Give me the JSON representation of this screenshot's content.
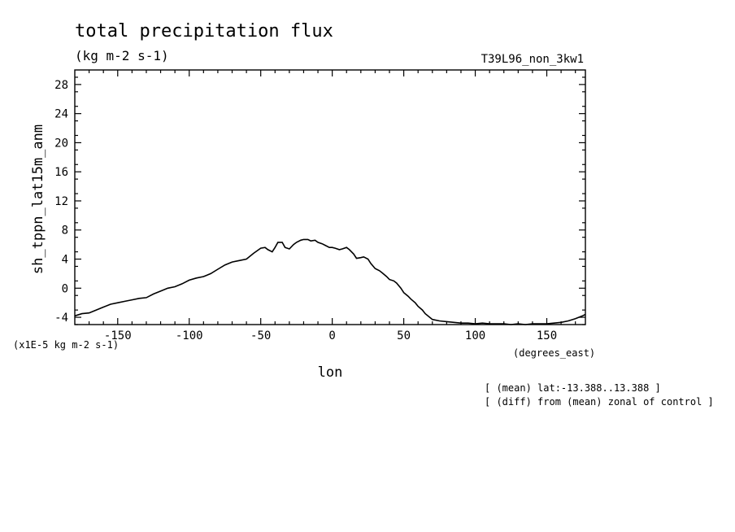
{
  "header": {
    "title": "total precipitation flux",
    "units": "(kg m-2 s-1)",
    "run_id": "T39L96_non_3kw1"
  },
  "axes": {
    "ylabel": "sh_tppn_lat15m_anm",
    "xlabel": "lon",
    "y_scale_note": "(x1E-5 kg m-2 s-1)",
    "x_unit": "(degrees_east)"
  },
  "notes": [
    "[ (mean) lat:-13.388..13.388 ]",
    "[ (diff) from (mean) zonal of control ]"
  ],
  "chart_data": {
    "type": "line",
    "title": "total precipitation flux",
    "subtitle": "(kg m-2 s-1)",
    "xlabel": "lon",
    "ylabel": "sh_tppn_lat15m_anm",
    "xlim": [
      -180,
      177
    ],
    "ylim": [
      -5,
      30
    ],
    "x_ticks": [
      -150,
      -100,
      -50,
      0,
      50,
      100,
      150
    ],
    "x_tick_labels": [
      "-150",
      "-100",
      "-50",
      "0",
      "50",
      "100",
      "150"
    ],
    "y_ticks": [
      -4,
      0,
      4,
      8,
      12,
      16,
      20,
      24,
      28
    ],
    "y_tick_labels": [
      "-4",
      "0",
      "4",
      "8",
      "12",
      "16",
      "20",
      "24",
      "28"
    ],
    "grid": false,
    "series": [
      {
        "x": [
          -180,
          -175,
          -170,
          -165,
          -160,
          -155,
          -150,
          -145,
          -140,
          -135,
          -130,
          -125,
          -120,
          -115,
          -110,
          -105,
          -100,
          -95,
          -90,
          -85,
          -80,
          -75,
          -70,
          -65,
          -60,
          -55,
          -50,
          -47,
          -45,
          -42,
          -40,
          -38,
          -35,
          -33,
          -30,
          -27,
          -25,
          -22,
          -20,
          -17,
          -15,
          -12,
          -10,
          -7,
          -5,
          -2,
          0,
          2,
          5,
          7,
          10,
          12,
          15,
          17,
          20,
          22,
          25,
          27,
          30,
          33,
          35,
          38,
          40,
          43,
          45,
          48,
          50,
          53,
          55,
          58,
          60,
          63,
          65,
          70,
          75,
          80,
          85,
          90,
          95,
          100,
          105,
          110,
          115,
          120,
          125,
          130,
          135,
          140,
          145,
          150,
          155,
          160,
          165,
          170,
          175,
          177
        ],
        "y": [
          -3.8,
          -3.5,
          -3.4,
          -3.0,
          -2.6,
          -2.2,
          -2.0,
          -1.8,
          -1.6,
          -1.4,
          -1.3,
          -0.8,
          -0.4,
          0.0,
          0.2,
          0.6,
          1.1,
          1.4,
          1.6,
          2.0,
          2.6,
          3.2,
          3.6,
          3.8,
          4.0,
          4.8,
          5.5,
          5.6,
          5.3,
          5.0,
          5.6,
          6.3,
          6.3,
          5.6,
          5.4,
          6.0,
          6.3,
          6.6,
          6.7,
          6.7,
          6.5,
          6.6,
          6.3,
          6.1,
          5.9,
          5.6,
          5.6,
          5.5,
          5.3,
          5.4,
          5.6,
          5.3,
          4.7,
          4.1,
          4.2,
          4.3,
          4.0,
          3.4,
          2.7,
          2.4,
          2.1,
          1.6,
          1.2,
          1.0,
          0.7,
          0.0,
          -0.6,
          -1.1,
          -1.5,
          -2.0,
          -2.5,
          -3.0,
          -3.5,
          -4.3,
          -4.5,
          -4.6,
          -4.7,
          -4.8,
          -4.8,
          -4.9,
          -4.8,
          -4.9,
          -4.9,
          -4.9,
          -5.0,
          -4.9,
          -5.0,
          -4.9,
          -4.9,
          -4.9,
          -4.8,
          -4.7,
          -4.5,
          -4.2,
          -3.8,
          -3.6
        ]
      }
    ]
  }
}
